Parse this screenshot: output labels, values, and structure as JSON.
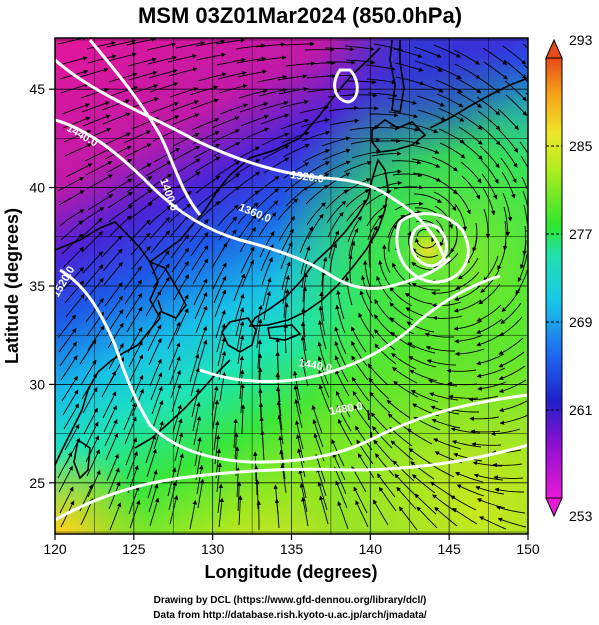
{
  "title": "MSM 03Z01Mar2024 (850.0hPa)",
  "axes": {
    "xlabel": "Longitude (degrees)",
    "ylabel": "Latitude  (degrees)",
    "xticks": [
      "120",
      "125",
      "130",
      "135",
      "140",
      "145",
      "150"
    ],
    "yticks": [
      "25",
      "30",
      "35",
      "40",
      "45"
    ],
    "xlim": [
      120,
      150
    ],
    "ylim": [
      22.4,
      47.6
    ]
  },
  "colorbar": {
    "ticks": [
      "293",
      "285",
      "277",
      "269",
      "261",
      "253"
    ],
    "range": [
      253,
      293
    ]
  },
  "contours": {
    "labels": [
      "1440.0",
      "1320.0",
      "1400.0",
      "1360.0",
      "1520.0",
      "1440.0",
      "1480.0"
    ]
  },
  "credits": {
    "line1": "Drawing by DCL (https://www.gfd-dennou.org/library/dcl/)",
    "line2": "Data from http://database.rish.kyoto-u.ac.jp/arch/jmadata/"
  },
  "colors": {
    "cold": "#e0179a",
    "cool": "#2a2ae0",
    "mid": "#18e0e8",
    "warm": "#2ee62e",
    "hot": "#ffe020"
  }
}
